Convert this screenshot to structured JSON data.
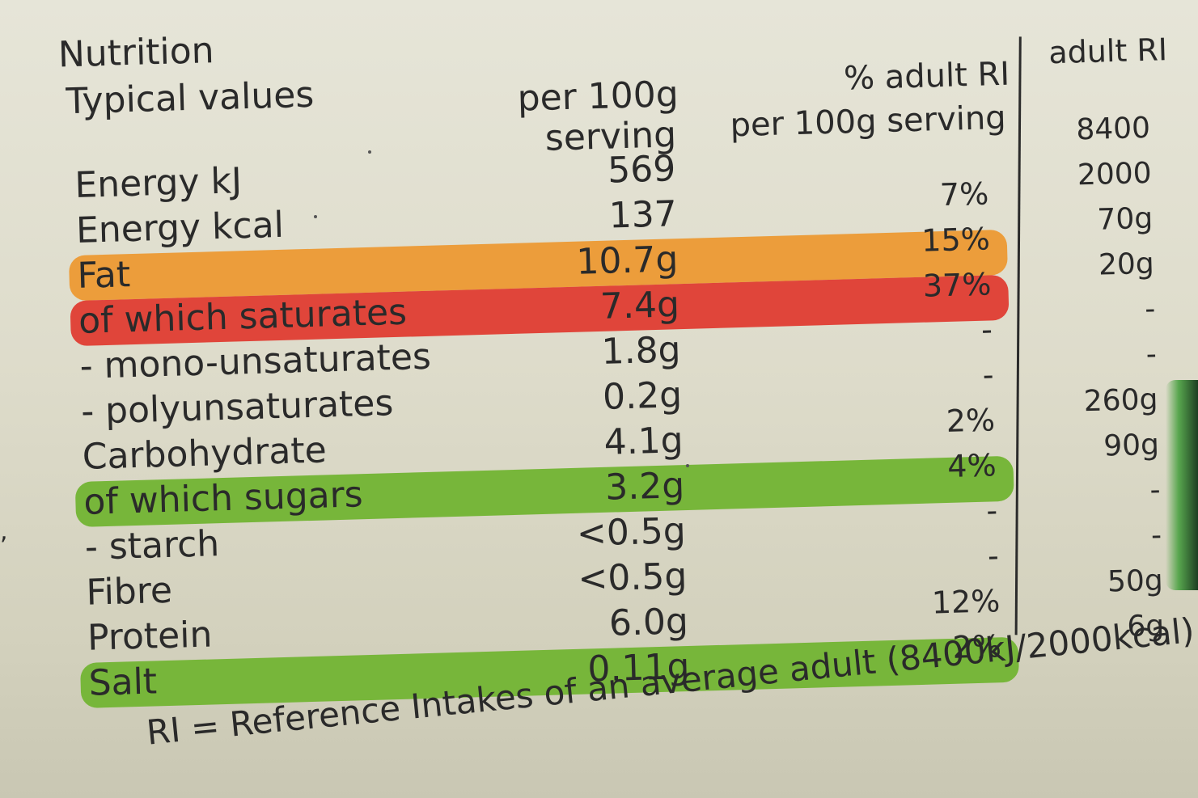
{
  "colors": {
    "fat_band": "#ec9d3b",
    "saturates_band": "#e0453a",
    "sugars_band": "#77b63a",
    "salt_band": "#77b63a",
    "text": "#2a2a2a"
  },
  "header": {
    "title": "Nutrition",
    "subtitle": "Typical values",
    "col_per100_line1": "per 100g",
    "col_per100_line2": "serving",
    "col_pct_line1": "% adult RI",
    "col_pct_line2": "per 100g serving",
    "col_ri": "adult RI"
  },
  "rows": [
    {
      "label": "Energy kJ",
      "value": "569",
      "pct": "",
      "ri": "8400",
      "band": "none"
    },
    {
      "label": "Energy kcal",
      "value": "137",
      "pct": "7%",
      "ri": "2000",
      "band": "none"
    },
    {
      "label": "Fat",
      "value": "10.7g",
      "pct": "15%",
      "ri": "70g",
      "band": "amber"
    },
    {
      "label": "of which saturates",
      "value": "7.4g",
      "pct": "37%",
      "ri": "20g",
      "band": "red"
    },
    {
      "label": "- mono-unsaturates",
      "value": "1.8g",
      "pct": "-",
      "ri": "-",
      "band": "none"
    },
    {
      "label": "- polyunsaturates",
      "value": "0.2g",
      "pct": "-",
      "ri": "-",
      "band": "none"
    },
    {
      "label": "Carbohydrate",
      "value": "4.1g",
      "pct": "2%",
      "ri": "260g",
      "band": "none"
    },
    {
      "label": "of which sugars",
      "value": "3.2g",
      "pct": "4%",
      "ri": "90g",
      "band": "green"
    },
    {
      "label": "- starch",
      "value": "<0.5g",
      "pct": "-",
      "ri": "-",
      "band": "none"
    },
    {
      "label": "Fibre",
      "value": "<0.5g",
      "pct": "-",
      "ri": "-",
      "band": "none"
    },
    {
      "label": "Protein",
      "value": "6.0g",
      "pct": "12%",
      "ri": "50g",
      "band": "none"
    },
    {
      "label": "Salt",
      "value": "0.11g",
      "pct": "2%",
      "ri": "6g",
      "band": "green"
    }
  ],
  "footer": "RI = Reference Intakes of an average adult (8400kJ/2000kcal)"
}
